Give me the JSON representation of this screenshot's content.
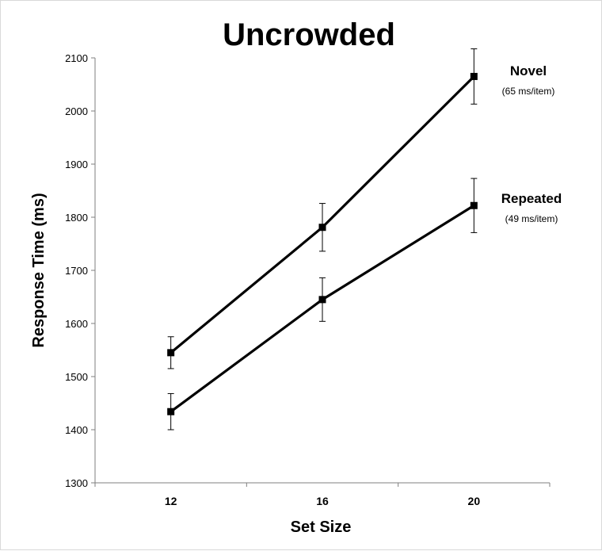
{
  "chart_data": {
    "type": "line",
    "title": "Uncrowded",
    "xlabel": "Set Size",
    "ylabel": "Response Time (ms)",
    "categories": [
      "12",
      "16",
      "20"
    ],
    "ylim": [
      1300,
      2100
    ],
    "yticks": [
      1300,
      1400,
      1500,
      1600,
      1700,
      1800,
      1900,
      2000,
      2100
    ],
    "grid": false,
    "legend": "none",
    "series": [
      {
        "name": "Novel",
        "note": "(65 ms/item)",
        "values": [
          1545,
          1781,
          2065
        ],
        "errors": [
          30,
          45,
          52
        ],
        "color": "#000000"
      },
      {
        "name": "Repeated",
        "note": "(49 ms/item)",
        "values": [
          1434,
          1645,
          1822
        ],
        "errors": [
          34,
          41,
          51
        ],
        "color": "#000000"
      }
    ]
  }
}
